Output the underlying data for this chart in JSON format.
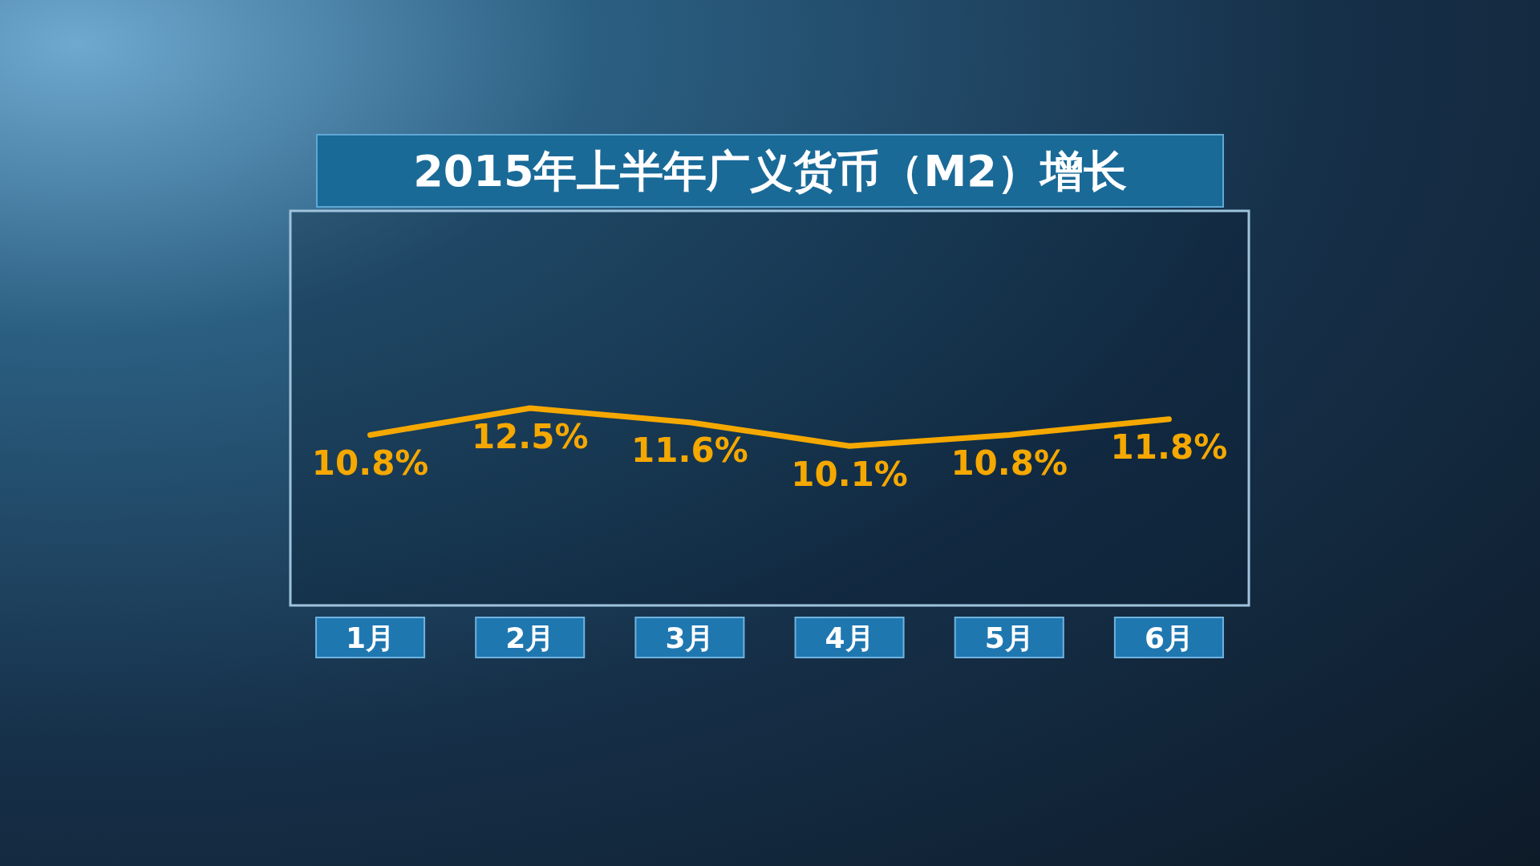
{
  "chart_data": {
    "type": "line",
    "title": "2015年上半年广义货币（M2）增长",
    "categories": [
      "1月",
      "2月",
      "3月",
      "4月",
      "5月",
      "6月"
    ],
    "series": [
      {
        "color": "#f5a800",
        "values": [
          10.8,
          12.5,
          11.6,
          10.1,
          10.8,
          11.8
        ],
        "value_labels": [
          "10.8%",
          "12.5%",
          "11.6%",
          "10.1%",
          "10.8%",
          "11.8%"
        ]
      }
    ],
    "grid": false,
    "marker": "none",
    "line_style": "solid"
  }
}
